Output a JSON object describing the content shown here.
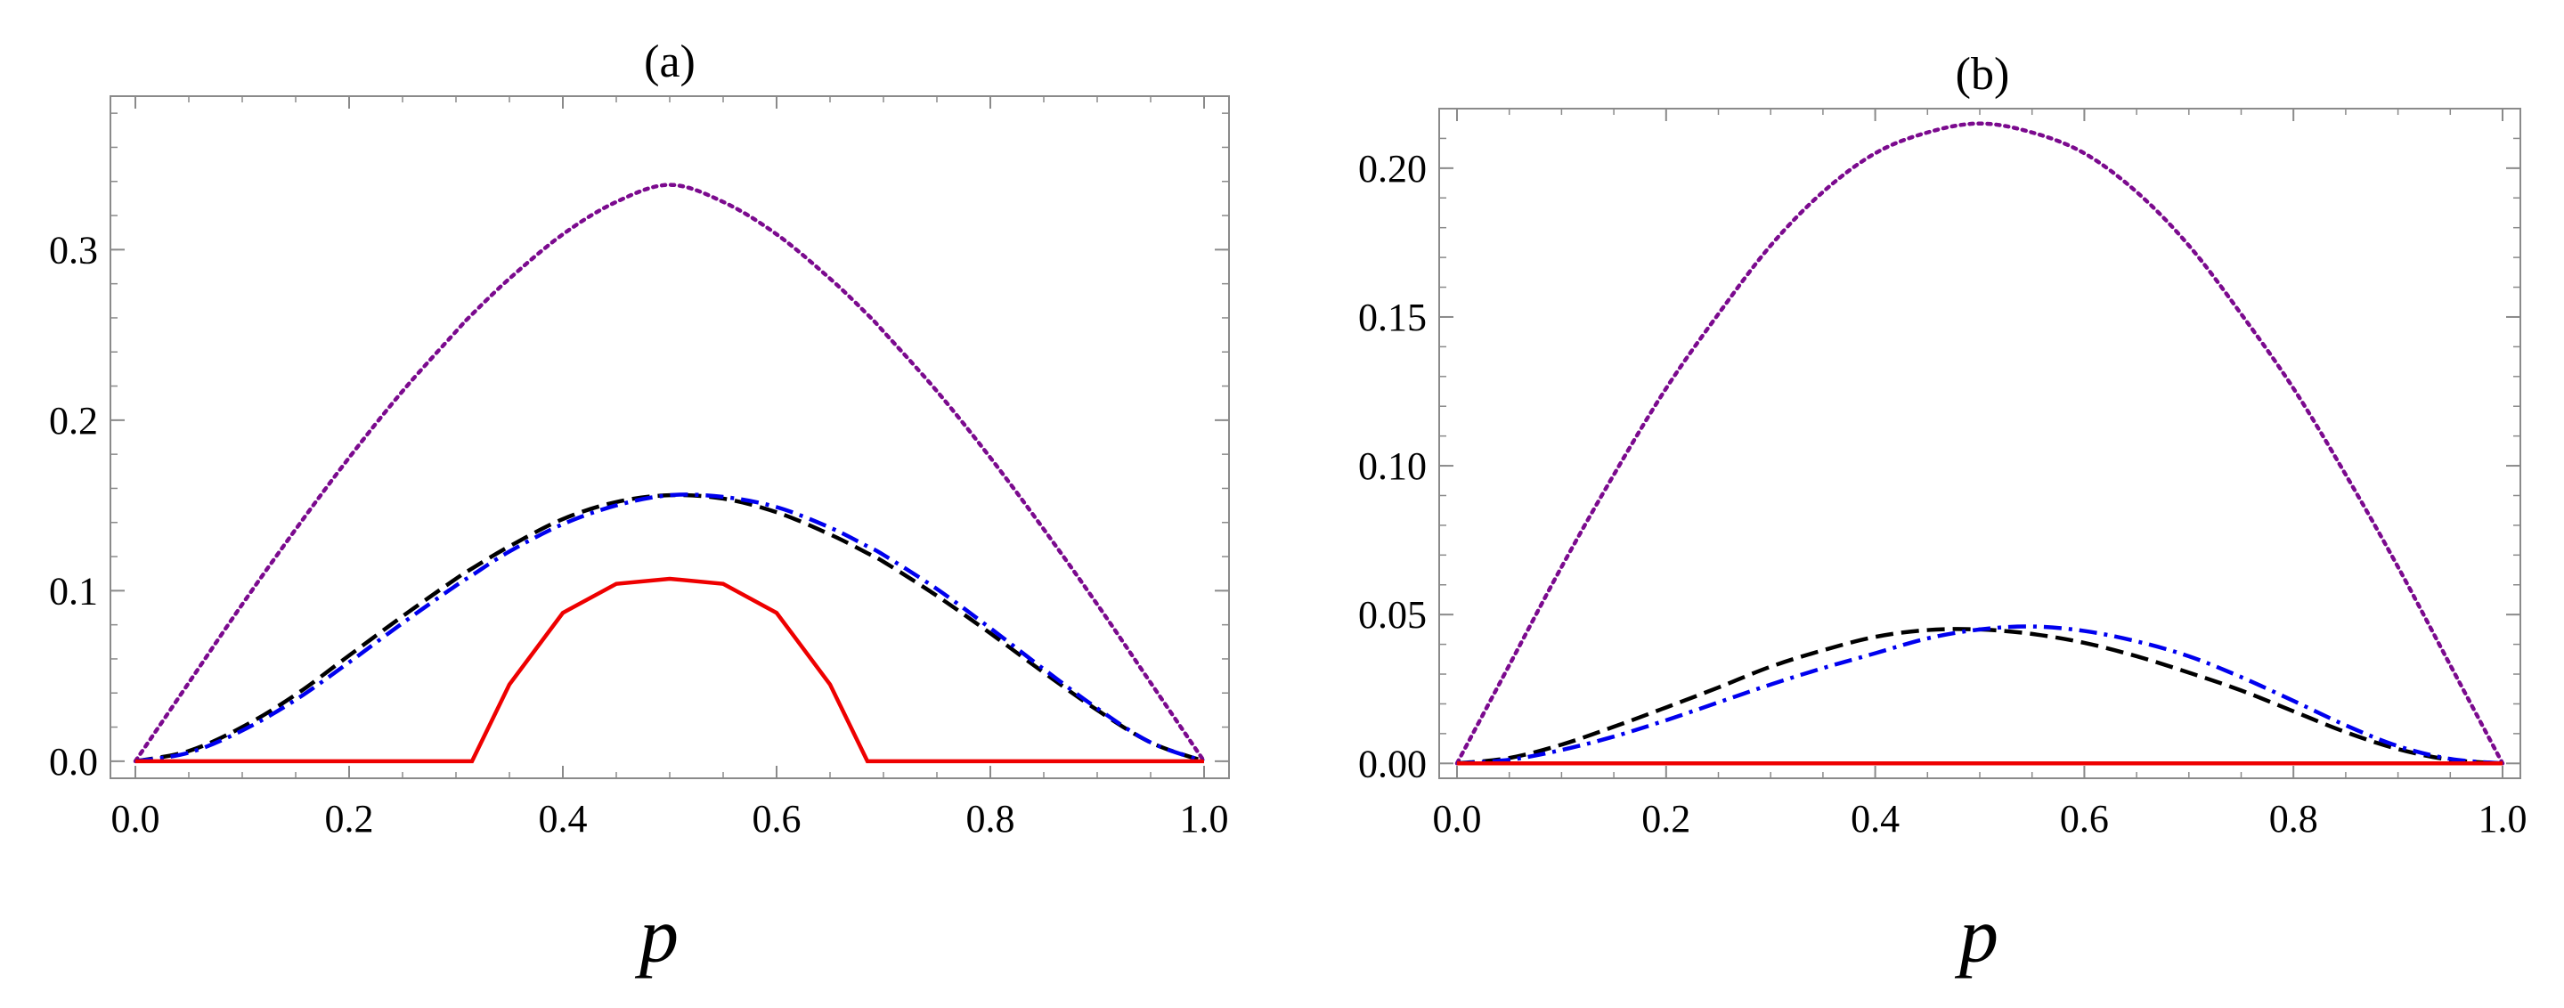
{
  "chart_data": [
    {
      "type": "line",
      "panel_label": "(a)",
      "xlabel": "p",
      "ylabel": "",
      "xlim": [
        0,
        1
      ],
      "ylim": [
        -0.01,
        0.39
      ],
      "xticks": [
        0.0,
        0.2,
        0.4,
        0.6,
        0.8,
        1.0
      ],
      "xtick_labels": [
        "0.0",
        "0.2",
        "0.4",
        "0.6",
        "0.8",
        "1.0"
      ],
      "yticks": [
        0.0,
        0.1,
        0.2,
        0.3
      ],
      "ytick_labels": [
        "0.0",
        "0.1",
        "0.2",
        "0.3"
      ],
      "x": [
        0.0,
        0.05,
        0.1,
        0.15,
        0.2,
        0.25,
        0.3,
        0.315,
        0.35,
        0.4,
        0.45,
        0.5,
        0.55,
        0.6,
        0.65,
        0.685,
        0.7,
        0.75,
        0.8,
        0.85,
        0.9,
        0.95,
        1.0
      ],
      "series": [
        {
          "name": "purple-dotted",
          "color": "#7b0a8e",
          "dash": "dotted",
          "values": [
            0.0,
            0.046,
            0.092,
            0.136,
            0.178,
            0.217,
            0.252,
            0.262,
            0.283,
            0.309,
            0.328,
            0.338,
            0.328,
            0.309,
            0.283,
            0.262,
            0.252,
            0.217,
            0.178,
            0.136,
            0.092,
            0.046,
            0.0
          ]
        },
        {
          "name": "black-dashed",
          "color": "#000000",
          "dash": "dashed",
          "values": [
            0.0,
            0.006,
            0.02,
            0.039,
            0.062,
            0.085,
            0.107,
            0.113,
            0.126,
            0.142,
            0.152,
            0.156,
            0.154,
            0.146,
            0.133,
            0.122,
            0.117,
            0.097,
            0.075,
            0.052,
            0.03,
            0.011,
            0.0
          ]
        },
        {
          "name": "blue-dashdot",
          "color": "#0000ee",
          "dash": "dashdot",
          "values": [
            0.0,
            0.005,
            0.018,
            0.036,
            0.058,
            0.081,
            0.103,
            0.109,
            0.123,
            0.139,
            0.15,
            0.156,
            0.155,
            0.149,
            0.137,
            0.126,
            0.121,
            0.101,
            0.078,
            0.054,
            0.031,
            0.011,
            0.0
          ]
        },
        {
          "name": "red-solid",
          "color": "#ee0000",
          "dash": "solid",
          "values": [
            0.0,
            0.0,
            0.0,
            0.0,
            0.0,
            0.0,
            0.0,
            0.0,
            0.045,
            0.087,
            0.104,
            0.107,
            0.104,
            0.087,
            0.045,
            0.0,
            0.0,
            0.0,
            0.0,
            0.0,
            0.0,
            0.0,
            0.0
          ]
        }
      ]
    },
    {
      "type": "line",
      "panel_label": "(b)",
      "xlabel": "p",
      "ylabel": "",
      "xlim": [
        0,
        1
      ],
      "ylim": [
        -0.005,
        0.22
      ],
      "xticks": [
        0.0,
        0.2,
        0.4,
        0.6,
        0.8,
        1.0
      ],
      "xtick_labels": [
        "0.0",
        "0.2",
        "0.4",
        "0.6",
        "0.8",
        "1.0"
      ],
      "yticks": [
        0.0,
        0.05,
        0.1,
        0.15,
        0.2
      ],
      "ytick_labels": [
        "0.00",
        "0.05",
        "0.10",
        "0.15",
        "0.20"
      ],
      "x": [
        0.0,
        0.05,
        0.1,
        0.15,
        0.2,
        0.25,
        0.3,
        0.35,
        0.4,
        0.45,
        0.5,
        0.55,
        0.6,
        0.65,
        0.7,
        0.75,
        0.8,
        0.85,
        0.9,
        0.95,
        1.0
      ],
      "series": [
        {
          "name": "purple-dotted",
          "color": "#7b0a8e",
          "dash": "dotted",
          "values": [
            0.0,
            0.033,
            0.066,
            0.097,
            0.126,
            0.151,
            0.174,
            0.192,
            0.205,
            0.212,
            0.215,
            0.212,
            0.205,
            0.192,
            0.174,
            0.151,
            0.126,
            0.097,
            0.066,
            0.033,
            0.0
          ]
        },
        {
          "name": "black-dashed",
          "color": "#000000",
          "dash": "dashed",
          "values": [
            0.0,
            0.0018,
            0.0063,
            0.0123,
            0.0188,
            0.0255,
            0.0325,
            0.038,
            0.0425,
            0.0448,
            0.045,
            0.0435,
            0.0405,
            0.036,
            0.0305,
            0.0245,
            0.0175,
            0.0105,
            0.0048,
            0.0012,
            0.0
          ]
        },
        {
          "name": "blue-dashdot",
          "color": "#0000ee",
          "dash": "dashdot",
          "values": [
            0.0,
            0.0012,
            0.0045,
            0.009,
            0.0145,
            0.0205,
            0.0265,
            0.032,
            0.037,
            0.042,
            0.045,
            0.046,
            0.0445,
            0.041,
            0.036,
            0.029,
            0.021,
            0.0128,
            0.0058,
            0.0015,
            0.0
          ]
        },
        {
          "name": "red-solid",
          "color": "#ee0000",
          "dash": "solid",
          "values": [
            0.0,
            0.0,
            0.0,
            0.0,
            0.0,
            0.0,
            0.0,
            0.0,
            0.0,
            0.0,
            0.0,
            0.0,
            0.0,
            0.0,
            0.0,
            0.0,
            0.0,
            0.0,
            0.0,
            0.0,
            0.0
          ]
        }
      ]
    }
  ]
}
